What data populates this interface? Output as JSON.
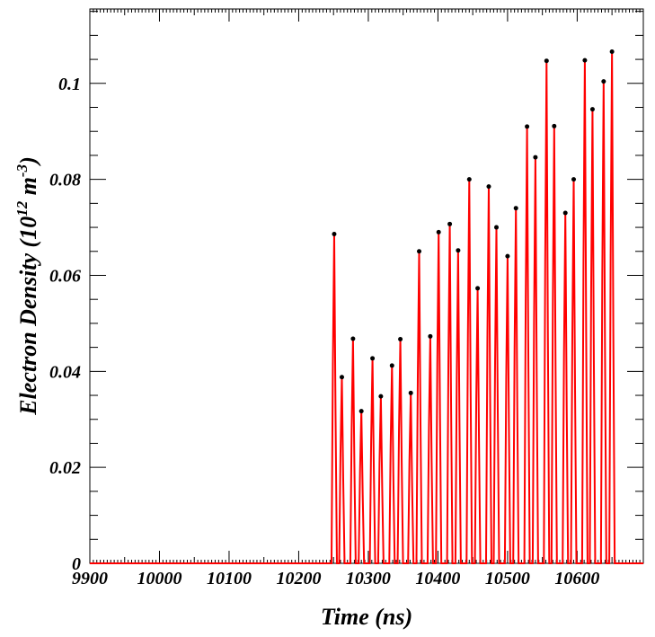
{
  "chart_data": {
    "type": "line",
    "xlabel": "Time (ns)",
    "ylabel": {
      "text_main": "Electron Density (10",
      "sup1": "12",
      "text_mid": " m",
      "sup2": "-3",
      "text_end": ")"
    },
    "xlim": [
      9900,
      10695
    ],
    "ylim": [
      0,
      0.1155
    ],
    "xticks": [
      9900,
      10000,
      10100,
      10200,
      10300,
      10400,
      10500,
      10600
    ],
    "xtick_labels": [
      "9900",
      "10000",
      "10100",
      "10200",
      "10300",
      "10400",
      "10500",
      "10600"
    ],
    "yticks": [
      0,
      0.02,
      0.04,
      0.06,
      0.08,
      0.1
    ],
    "ytick_labels": [
      "0",
      "0.02",
      "0.04",
      "0.06",
      "0.08",
      "0.1"
    ],
    "grid": false,
    "legend": "none",
    "series_color": "#ff0000",
    "marker_color": "#000000",
    "pulse_start": 10243,
    "pulse_end": 10660,
    "peaks": [
      {
        "x": 10251,
        "y": 0.0686
      },
      {
        "x": 10262,
        "y": 0.0388
      },
      {
        "x": 10278,
        "y": 0.0468
      },
      {
        "x": 10290,
        "y": 0.0317
      },
      {
        "x": 10306,
        "y": 0.0427
      },
      {
        "x": 10318,
        "y": 0.0348
      },
      {
        "x": 10334,
        "y": 0.0412
      },
      {
        "x": 10346,
        "y": 0.0467
      },
      {
        "x": 10361,
        "y": 0.0355
      },
      {
        "x": 10373,
        "y": 0.065
      },
      {
        "x": 10389,
        "y": 0.0473
      },
      {
        "x": 10401,
        "y": 0.069
      },
      {
        "x": 10417,
        "y": 0.0707
      },
      {
        "x": 10429,
        "y": 0.0652
      },
      {
        "x": 10445,
        "y": 0.08
      },
      {
        "x": 10457,
        "y": 0.0573
      },
      {
        "x": 10473,
        "y": 0.0785
      },
      {
        "x": 10484,
        "y": 0.07
      },
      {
        "x": 10500,
        "y": 0.064
      },
      {
        "x": 10512,
        "y": 0.074
      },
      {
        "x": 10528,
        "y": 0.091
      },
      {
        "x": 10540,
        "y": 0.0846
      },
      {
        "x": 10556,
        "y": 0.1047
      },
      {
        "x": 10567,
        "y": 0.0911
      },
      {
        "x": 10583,
        "y": 0.073
      },
      {
        "x": 10595,
        "y": 0.08
      },
      {
        "x": 10611,
        "y": 0.1048
      },
      {
        "x": 10622,
        "y": 0.0946
      },
      {
        "x": 10638,
        "y": 0.1004
      },
      {
        "x": 10650,
        "y": 0.1066
      }
    ]
  }
}
